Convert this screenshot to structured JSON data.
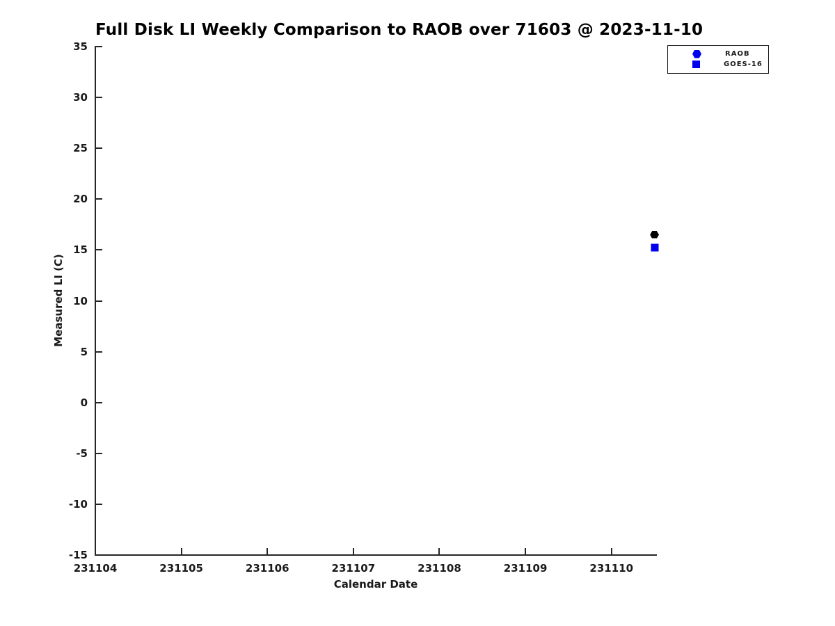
{
  "chart_data": {
    "type": "scatter",
    "title": "Full Disk LI Weekly Comparison to RAOB over 71603 @ 2023-11-10",
    "xlabel": "Calendar Date",
    "ylabel": "Measured LI (C)",
    "xlim": [
      231104,
      231110.52
    ],
    "ylim": [
      -15,
      35
    ],
    "xticks": [
      231104,
      231105,
      231106,
      231107,
      231108,
      231109,
      231110
    ],
    "yticks": [
      -15,
      -10,
      -5,
      0,
      5,
      10,
      15,
      20,
      25,
      30,
      35
    ],
    "grid": false,
    "axis_color": "#262626",
    "legend": {
      "position": "top-right",
      "entries": [
        {
          "label": "RAOB",
          "marker": "hexagon",
          "marker_color": "#0000EE"
        },
        {
          "label": "GOES-16",
          "marker": "square",
          "marker_color": "#0000EE"
        }
      ]
    },
    "series": [
      {
        "name": "RAOB",
        "marker": "hexagon",
        "color": "#000000",
        "points": [
          {
            "x": 231110.5,
            "y": 16.5
          }
        ]
      },
      {
        "name": "GOES-16",
        "marker": "square",
        "color": "#0000EE",
        "points": [
          {
            "x": 231110.5,
            "y": 15.25
          }
        ]
      }
    ]
  }
}
